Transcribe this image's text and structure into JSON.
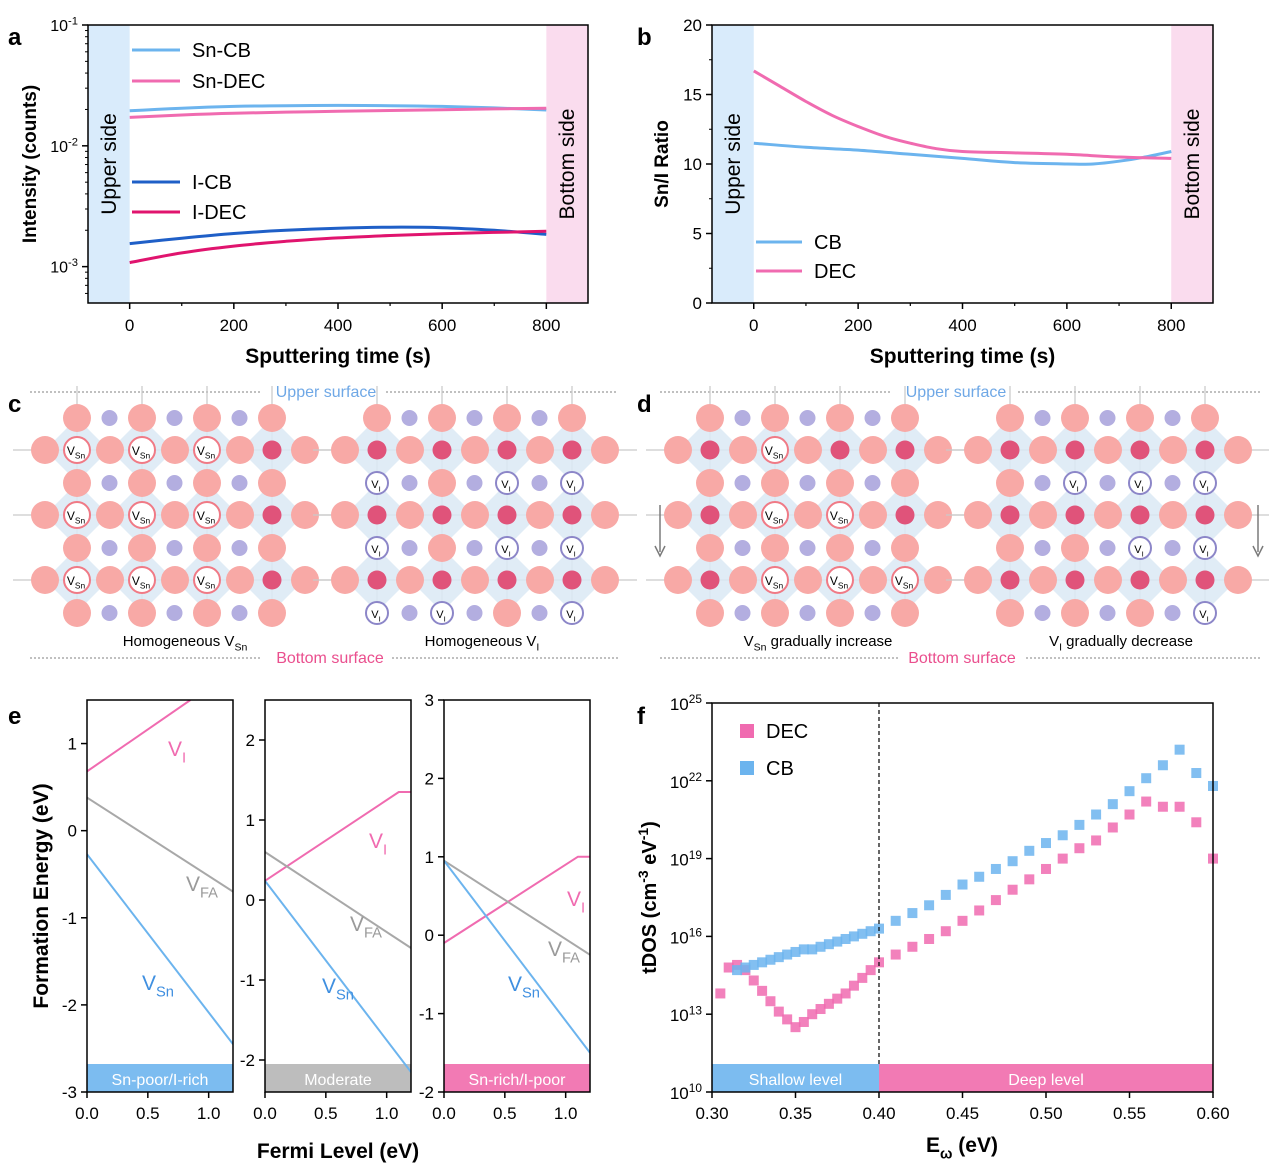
{
  "colors": {
    "sn_cb": "#6cb4ee",
    "sn_dec": "#f06bb0",
    "i_cb": "#1f5fc7",
    "i_dec": "#e0146e",
    "cb": "#6cb4ee",
    "dec": "#f06bb0",
    "upper_band": "#d9ebfb",
    "bottom_band": "#fadcee",
    "gray_line": "#a8a8a8",
    "lattice_big": "#f8a9a6",
    "lattice_center": "#e0537a",
    "lattice_small": "#b3aee0",
    "octa": "#dbe9f4",
    "upper_surface_text": "#6fa8e6",
    "bottom_surface_text": "#ea4f8e"
  },
  "panels": {
    "a": {
      "label": "a"
    },
    "b": {
      "label": "b"
    },
    "c": {
      "label": "c",
      "upper": "Upper surface",
      "bottom": "Bottom surface",
      "left_caption": "Homogeneous V",
      "left_caption_sub": "Sn",
      "right_caption": "Homogeneous V",
      "right_caption_sub": "I",
      "vac_sn_main": "V",
      "vac_sn_sub": "Sn",
      "vac_i_main": "V",
      "vac_i_sub": "I"
    },
    "d": {
      "label": "d",
      "upper": "Upper surface",
      "bottom": "Bottom surface",
      "left_caption_main": "V",
      "left_caption_sub": "Sn",
      "left_caption_rest": " gradually increase",
      "right_caption_main": "V",
      "right_caption_sub": "I",
      "right_caption_rest": " gradually decrease"
    },
    "e": {
      "label": "e",
      "ylabel": "Formation Energy (eV)",
      "xlabel": "Fermi Level (eV)",
      "band1": "Sn-poor/I-rich",
      "band2": "Moderate",
      "band3": "Sn-rich/I-poor",
      "vi_main": "V",
      "vi_sub": "I",
      "vfa_main": "V",
      "vfa_sub": "FA",
      "vsn_main": "V",
      "vsn_sub": "Sn"
    },
    "f": {
      "label": "f",
      "ylabel_main": "tDOS (cm",
      "ylabel_sup1": "-3",
      "ylabel_mid": " eV",
      "ylabel_sup2": "-1",
      "ylabel_end": ")",
      "xlabel_main": "E",
      "xlabel_sub": "ω",
      "xlabel_end": " (eV)",
      "shallow": "Shallow level",
      "deep": "Deep level"
    }
  },
  "chart_data": [
    {
      "panel": "a",
      "type": "line",
      "ylabel": "Intensity (counts)",
      "xlabel": "Sputtering time (s)",
      "yscale": "log",
      "ylim": [
        0.0005,
        0.1
      ],
      "xlim": [
        -80,
        880
      ],
      "xticks": [
        0,
        200,
        400,
        600,
        800
      ],
      "yticks": [
        {
          "v": 0.001,
          "m": "10",
          "e": "-3"
        },
        {
          "v": 0.01,
          "m": "10",
          "e": "-2"
        },
        {
          "v": 0.1,
          "m": "10",
          "e": "-1"
        }
      ],
      "shaded_regions": [
        {
          "label": "Upper side",
          "x": [
            -80,
            0
          ]
        },
        {
          "label": "Bottom side",
          "x": [
            800,
            880
          ]
        }
      ],
      "legend_position": "upper-left",
      "series": [
        {
          "name": "Sn-CB",
          "color": "#6cb4ee",
          "x": [
            0,
            100,
            200,
            300,
            400,
            500,
            600,
            700,
            800
          ],
          "y": [
            0.0195,
            0.0205,
            0.0212,
            0.0215,
            0.0216,
            0.0215,
            0.0212,
            0.0206,
            0.0198
          ]
        },
        {
          "name": "Sn-DEC",
          "color": "#f06bb0",
          "x": [
            0,
            100,
            200,
            300,
            400,
            500,
            600,
            700,
            800
          ],
          "y": [
            0.0172,
            0.018,
            0.0186,
            0.019,
            0.0193,
            0.0196,
            0.0199,
            0.0202,
            0.0205
          ]
        },
        {
          "name": "I-CB",
          "color": "#1f5fc7",
          "x": [
            0,
            100,
            200,
            300,
            400,
            500,
            600,
            700,
            800
          ],
          "y": [
            0.00155,
            0.00172,
            0.00188,
            0.002,
            0.00208,
            0.00212,
            0.0021,
            0.002,
            0.00185
          ]
        },
        {
          "name": "I-DEC",
          "color": "#e0146e",
          "x": [
            0,
            100,
            200,
            300,
            400,
            500,
            600,
            700,
            800
          ],
          "y": [
            0.00108,
            0.0013,
            0.00148,
            0.00162,
            0.00173,
            0.00181,
            0.00187,
            0.00192,
            0.00196
          ]
        }
      ]
    },
    {
      "panel": "b",
      "type": "line",
      "ylabel": "Sn/I Ratio",
      "xlabel": "Sputtering time (s)",
      "ylim": [
        0,
        20
      ],
      "xlim": [
        -80,
        880
      ],
      "xticks": [
        0,
        200,
        400,
        600,
        800
      ],
      "yticks": [
        0,
        5,
        10,
        15,
        20
      ],
      "shaded_regions": [
        {
          "label": "Upper side",
          "x": [
            -80,
            0
          ]
        },
        {
          "label": "Bottom side",
          "x": [
            800,
            880
          ]
        }
      ],
      "legend_position": "lower-left",
      "series": [
        {
          "name": "CB",
          "color": "#6cb4ee",
          "x": [
            0,
            100,
            200,
            300,
            400,
            500,
            600,
            650,
            700,
            750,
            800
          ],
          "y": [
            11.5,
            11.2,
            11.0,
            10.7,
            10.4,
            10.1,
            10.0,
            10.0,
            10.2,
            10.5,
            10.9
          ]
        },
        {
          "name": "DEC",
          "color": "#f06bb0",
          "x": [
            0,
            50,
            100,
            150,
            200,
            250,
            300,
            350,
            400,
            500,
            600,
            700,
            800
          ],
          "y": [
            16.7,
            15.6,
            14.5,
            13.5,
            12.7,
            12.0,
            11.5,
            11.1,
            10.9,
            10.8,
            10.7,
            10.5,
            10.4
          ]
        }
      ]
    },
    {
      "panel": "e",
      "type": "line",
      "ylabel": "Formation Energy (eV)",
      "xlabel": "Fermi Level (eV)",
      "subplots": [
        {
          "ylim": [
            -3,
            1.5
          ],
          "yticks": [
            -3,
            -2,
            -1,
            0,
            1
          ],
          "xticks": [
            0.0,
            0.5,
            1.0
          ],
          "xtick_labels": [
            "0.0",
            "0.5",
            "1.0"
          ],
          "xlim": [
            0,
            1.2
          ],
          "condition": "Sn-poor/I-rich",
          "series": [
            {
              "name": "VI",
              "color": "#f06bb0",
              "x": [
                0,
                0.85
              ],
              "y": [
                0.68,
                1.5
              ]
            },
            {
              "name": "VFA",
              "color": "#a8a8a8",
              "x": [
                0,
                1.2
              ],
              "y": [
                0.38,
                -0.7
              ]
            },
            {
              "name": "VSn",
              "color": "#6cb4ee",
              "x": [
                0,
                1.2
              ],
              "y": [
                -0.27,
                -2.45
              ]
            }
          ]
        },
        {
          "ylim": [
            -2.4,
            2.5
          ],
          "yticks": [
            -2,
            -1,
            0,
            1,
            2
          ],
          "xticks": [
            0.0,
            0.5,
            1.0
          ],
          "xtick_labels": [
            "0.0",
            "0.5",
            "1.0"
          ],
          "xlim": [
            0,
            1.2
          ],
          "condition": "Moderate",
          "series": [
            {
              "name": "VI",
              "color": "#f06bb0",
              "x": [
                0,
                1.1,
                1.2
              ],
              "y": [
                0.24,
                1.35,
                1.35
              ]
            },
            {
              "name": "VFA",
              "color": "#a8a8a8",
              "x": [
                0,
                1.2
              ],
              "y": [
                0.6,
                -0.6
              ]
            },
            {
              "name": "VSn",
              "color": "#6cb4ee",
              "x": [
                0,
                1.2
              ],
              "y": [
                0.24,
                -2.15
              ]
            }
          ]
        },
        {
          "ylim": [
            -2,
            3
          ],
          "yticks": [
            -2,
            -1,
            0,
            1,
            2,
            3
          ],
          "xticks": [
            0.0,
            0.5,
            1.0
          ],
          "xtick_labels": [
            "0.0",
            "0.5",
            "1.0"
          ],
          "xlim": [
            0,
            1.2
          ],
          "condition": "Sn-rich/I-poor",
          "series": [
            {
              "name": "VI",
              "color": "#f06bb0",
              "x": [
                0,
                1.1,
                1.2
              ],
              "y": [
                -0.1,
                1.0,
                1.0
              ]
            },
            {
              "name": "VFA",
              "color": "#a8a8a8",
              "x": [
                0,
                1.2
              ],
              "y": [
                0.95,
                -0.25
              ]
            },
            {
              "name": "VSn",
              "color": "#6cb4ee",
              "x": [
                0,
                1.2
              ],
              "y": [
                0.95,
                -1.5
              ]
            }
          ]
        }
      ]
    },
    {
      "panel": "f",
      "type": "scatter",
      "ylabel": "tDOS (cm-3 eV-1)",
      "xlabel": "Eω (eV)",
      "yscale": "log",
      "ylim": [
        10000000000.0,
        1e+25
      ],
      "xlim": [
        0.3,
        0.6
      ],
      "xticks": [
        0.3,
        0.35,
        0.4,
        0.45,
        0.5,
        0.55,
        0.6
      ],
      "xtick_labels": [
        "0.30",
        "0.35",
        "0.40",
        "0.45",
        "0.50",
        "0.55",
        "0.60"
      ],
      "yticks": [
        {
          "v": 10,
          "m": "10",
          "e": "10"
        },
        {
          "v": 13,
          "m": "10",
          "e": "13"
        },
        {
          "v": 16,
          "m": "10",
          "e": "16"
        },
        {
          "v": 19,
          "m": "10",
          "e": "19"
        },
        {
          "v": 22,
          "m": "10",
          "e": "22"
        },
        {
          "v": 25,
          "m": "10",
          "e": "25"
        }
      ],
      "divider_x": 0.4,
      "regions": [
        {
          "label": "Shallow level",
          "x": [
            0.3,
            0.4
          ]
        },
        {
          "label": "Deep level",
          "x": [
            0.4,
            0.6
          ]
        }
      ],
      "legend_position": "upper-left",
      "series": [
        {
          "name": "DEC",
          "color": "#f06bb0",
          "x": [
            0.305,
            0.31,
            0.315,
            0.32,
            0.325,
            0.33,
            0.335,
            0.34,
            0.345,
            0.35,
            0.355,
            0.36,
            0.365,
            0.37,
            0.375,
            0.38,
            0.385,
            0.39,
            0.395,
            0.4,
            0.41,
            0.42,
            0.43,
            0.44,
            0.45,
            0.46,
            0.47,
            0.48,
            0.49,
            0.5,
            0.51,
            0.52,
            0.53,
            0.54,
            0.55,
            0.56,
            0.57,
            0.58,
            0.59,
            0.6
          ],
          "log10y": [
            13.8,
            14.8,
            14.9,
            14.7,
            14.3,
            13.9,
            13.5,
            13.1,
            12.8,
            12.5,
            12.7,
            13.0,
            13.2,
            13.4,
            13.6,
            13.8,
            14.1,
            14.4,
            14.7,
            15.0,
            15.3,
            15.6,
            15.9,
            16.2,
            16.6,
            17.0,
            17.4,
            17.8,
            18.2,
            18.6,
            19.0,
            19.4,
            19.7,
            20.2,
            20.7,
            21.2,
            21.0,
            21.0,
            20.4,
            19.0
          ]
        },
        {
          "name": "CB",
          "color": "#6cb4ee",
          "x": [
            0.315,
            0.32,
            0.325,
            0.33,
            0.335,
            0.34,
            0.345,
            0.35,
            0.355,
            0.36,
            0.365,
            0.37,
            0.375,
            0.38,
            0.385,
            0.39,
            0.395,
            0.4,
            0.41,
            0.42,
            0.43,
            0.44,
            0.45,
            0.46,
            0.47,
            0.48,
            0.49,
            0.5,
            0.51,
            0.52,
            0.53,
            0.54,
            0.55,
            0.56,
            0.57,
            0.58,
            0.59,
            0.6
          ],
          "log10y": [
            14.7,
            14.8,
            14.9,
            15.0,
            15.1,
            15.2,
            15.3,
            15.4,
            15.5,
            15.5,
            15.6,
            15.7,
            15.8,
            15.9,
            16.0,
            16.1,
            16.2,
            16.3,
            16.6,
            16.9,
            17.2,
            17.6,
            18.0,
            18.3,
            18.6,
            18.9,
            19.3,
            19.6,
            19.9,
            20.3,
            20.7,
            21.1,
            21.6,
            22.1,
            22.6,
            23.2,
            22.3,
            21.8
          ]
        }
      ]
    }
  ]
}
